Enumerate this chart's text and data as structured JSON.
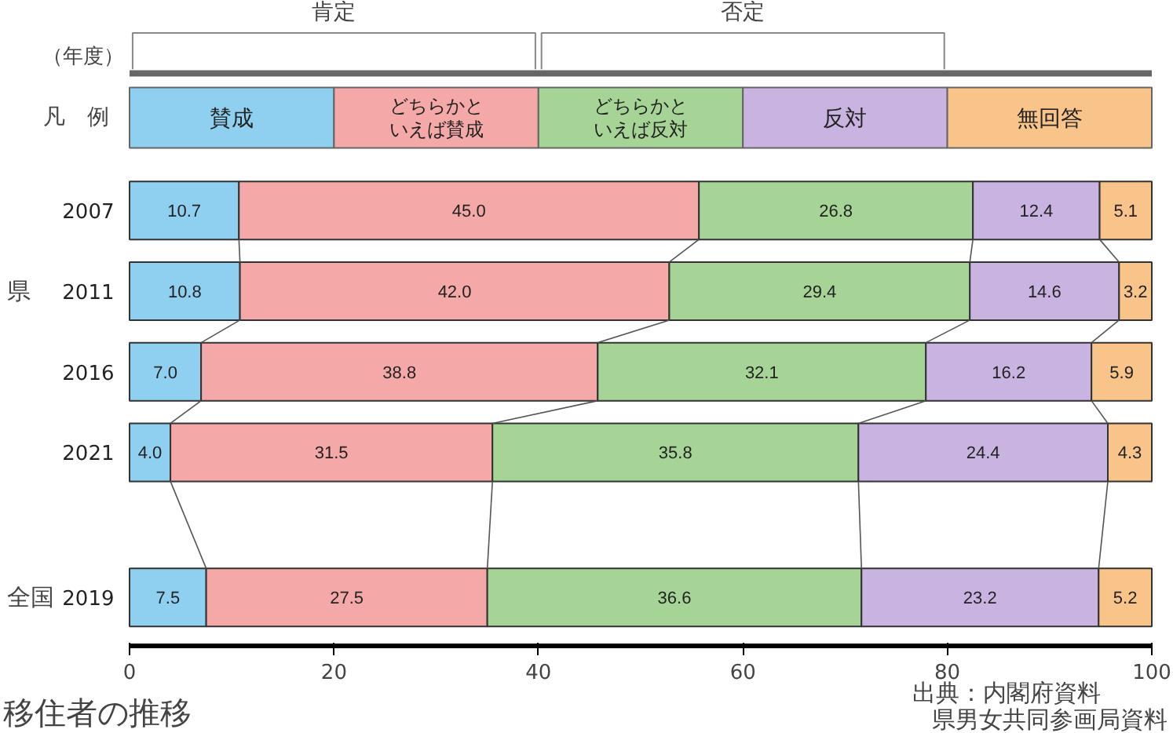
{
  "chart_data": {
    "type": "bar",
    "orientation": "horizontal",
    "stacked": true,
    "legend_title": "凡　例",
    "categories": [
      "2007",
      "2011",
      "2016",
      "2021",
      "2019"
    ],
    "series": [
      {
        "name": "賛成",
        "color": "#8fd0f0",
        "values": [
          10.7,
          10.8,
          7.0,
          4.0,
          7.5
        ]
      },
      {
        "name": "どちらかといえば賛成",
        "color": "#f4a8a8",
        "values": [
          45.0,
          42.0,
          38.8,
          31.5,
          27.5
        ]
      },
      {
        "name": "どちらかといえば反対",
        "color": "#a6d496",
        "values": [
          26.8,
          29.4,
          32.1,
          35.8,
          36.6
        ]
      },
      {
        "name": "反対",
        "color": "#c9b3e0",
        "values": [
          12.4,
          14.6,
          16.2,
          24.4,
          23.2
        ]
      },
      {
        "name": "無回答",
        "color": "#f9c48a",
        "values": [
          5.1,
          3.2,
          5.9,
          4.3,
          5.2
        ]
      }
    ],
    "xlim": [
      0,
      100
    ],
    "xticks": [
      0,
      20,
      40,
      60,
      80,
      100
    ],
    "value_labels": [
      [
        "10.7",
        "10.8",
        "7.0",
        "4.0",
        "7.5"
      ],
      [
        "45.0",
        "42.0",
        "38.8",
        "31.5",
        "27.5"
      ],
      [
        "26.8",
        "29.4",
        "32.1",
        "35.8",
        "36.6"
      ],
      [
        "12.4",
        "14.6",
        "16.2",
        "24.4",
        "23.2"
      ],
      [
        "5.1",
        "3.2",
        "5.9",
        "4.3",
        "5.2"
      ]
    ],
    "legend": "top",
    "grid": false,
    "annotations": [
      "肯定",
      "否定",
      "県",
      "全国",
      "出典：内閣府資料",
      "県男女共同参画局資料",
      "移住者の推移",
      "（年度）"
    ]
  }
}
